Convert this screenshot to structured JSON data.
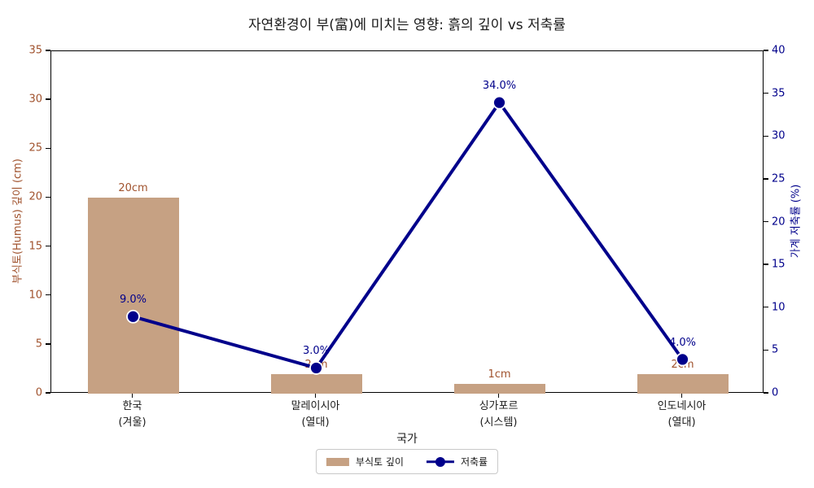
{
  "title": "자연환경이 부(富)에 미치는 영향: 흙의 깊이 vs 저축률",
  "chart_data": {
    "type": "bar",
    "subtype": "dual-axis bar + line",
    "xlabel": "국가",
    "grid": false,
    "categories": [
      {
        "name": "한국",
        "note": "(겨울)"
      },
      {
        "name": "말레이시아",
        "note": "(열대)"
      },
      {
        "name": "싱가포르",
        "note": "(시스템)"
      },
      {
        "name": "인도네시아",
        "note": "(열대)"
      }
    ],
    "series": [
      {
        "name": "부식토 깊이",
        "type": "bar",
        "axis": "left",
        "unit": "cm",
        "values": [
          20,
          2,
          1,
          2
        ],
        "labels": [
          "20cm",
          "2cm",
          "1cm",
          "2cm"
        ],
        "color": "#C6A183"
      },
      {
        "name": "저축률",
        "type": "line",
        "axis": "right",
        "unit": "%",
        "values": [
          9.0,
          3.0,
          34.0,
          4.0
        ],
        "labels": [
          "9.0%",
          "3.0%",
          "34.0%",
          "4.0%"
        ],
        "color": "#00008B",
        "marker_edge_color": "#FFFFFF"
      }
    ],
    "left_axis": {
      "label": "부식토(Humus) 깊이 (cm)",
      "min": 0,
      "max": 35,
      "step": 5,
      "ticks": [
        0,
        5,
        10,
        15,
        20,
        25,
        30,
        35
      ],
      "color": "#A0522D"
    },
    "right_axis": {
      "label": "가계 저축률 (%)",
      "min": 0,
      "max": 40,
      "step": 5,
      "ticks": [
        0,
        5,
        10,
        15,
        20,
        25,
        30,
        35,
        40
      ],
      "color": "#00008B"
    },
    "legend": {
      "position": "bottom-center",
      "entries": [
        "부식토 깊이",
        "저축률"
      ]
    }
  }
}
